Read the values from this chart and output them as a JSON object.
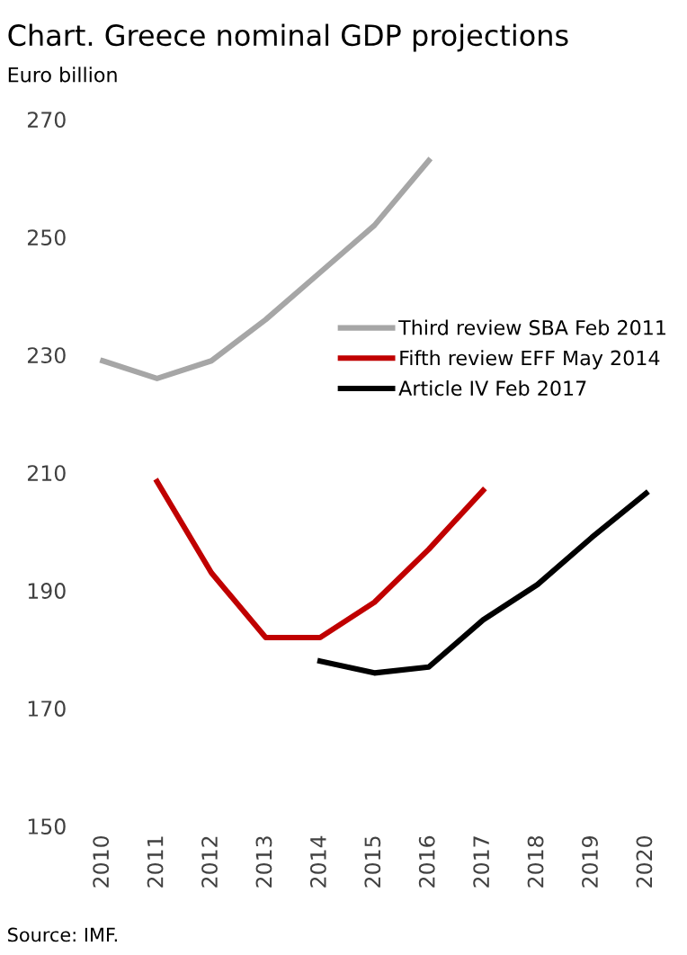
{
  "chart_data": {
    "type": "line",
    "title": "Chart. Greece nominal GDP projections",
    "ylabel": "Euro billion",
    "categories": [
      "2010",
      "2011",
      "2012",
      "2013",
      "2014",
      "2015",
      "2016",
      "2017",
      "2018",
      "2019",
      "2020"
    ],
    "series": [
      {
        "name": "Third review SBA Feb 2011",
        "color": "#a6a6a6",
        "values": [
          229,
          226,
          229,
          236,
          244,
          252,
          263,
          null,
          null,
          null,
          null
        ]
      },
      {
        "name": "Fifth review EFF May 2014",
        "color": "#c00000",
        "values": [
          null,
          208.5,
          193,
          182,
          182,
          188,
          197,
          207,
          null,
          null,
          null
        ]
      },
      {
        "name": "Article IV Feb 2017",
        "color": "#000000",
        "values": [
          null,
          null,
          null,
          null,
          178,
          176,
          177,
          185,
          191,
          199,
          206.5
        ]
      }
    ],
    "ylim": [
      150,
      270
    ],
    "yticks": [
      150,
      170,
      190,
      210,
      230,
      250,
      270
    ],
    "grid": false,
    "legend": "right",
    "line_style": "solid",
    "marker": "none",
    "annotations": [
      "Source: IMF."
    ]
  }
}
